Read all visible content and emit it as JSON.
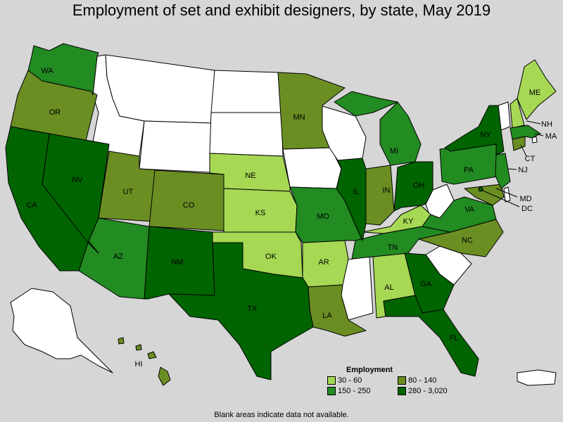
{
  "title": "Employment of set and exhibit designers, by state, May 2019",
  "legend": {
    "title": "Employment",
    "items": [
      {
        "label": "30 - 60",
        "color": "#a6d854"
      },
      {
        "label": "80 - 140",
        "color": "#6b8e23"
      },
      {
        "label": "150 - 250",
        "color": "#228b22"
      },
      {
        "label": "280 - 3,020",
        "color": "#006400"
      }
    ]
  },
  "note": "Blank areas indicate data not available.",
  "states": {
    "WA": {
      "label": "WA",
      "bin": "150 - 250"
    },
    "OR": {
      "label": "OR",
      "bin": "80 - 140"
    },
    "CA": {
      "label": "CA",
      "bin": "280 - 3,020"
    },
    "NV": {
      "label": "NV",
      "bin": "280 - 3,020"
    },
    "UT": {
      "label": "UT",
      "bin": "80 - 140"
    },
    "AZ": {
      "label": "AZ",
      "bin": "150 - 250"
    },
    "CO": {
      "label": "CO",
      "bin": "80 - 140"
    },
    "NM": {
      "label": "NM",
      "bin": "280 - 3,020"
    },
    "TX": {
      "label": "TX",
      "bin": "280 - 3,020"
    },
    "NE": {
      "label": "NE",
      "bin": "30 - 60"
    },
    "KS": {
      "label": "KS",
      "bin": "30 - 60"
    },
    "OK": {
      "label": "OK",
      "bin": "30 - 60"
    },
    "MN": {
      "label": "MN",
      "bin": "80 - 140"
    },
    "MO": {
      "label": "MO",
      "bin": "150 - 250"
    },
    "AR": {
      "label": "AR",
      "bin": "30 - 60"
    },
    "LA": {
      "label": "LA",
      "bin": "80 - 140"
    },
    "IL": {
      "label": "IL",
      "bin": "280 - 3,020"
    },
    "IN": {
      "label": "IN",
      "bin": "80 - 140"
    },
    "MI": {
      "label": "MI",
      "bin": "150 - 250"
    },
    "OH": {
      "label": "OH",
      "bin": "280 - 3,020"
    },
    "KY": {
      "label": "KY",
      "bin": "30 - 60"
    },
    "TN": {
      "label": "TN",
      "bin": "150 - 250"
    },
    "AL": {
      "label": "AL",
      "bin": "30 - 60"
    },
    "GA": {
      "label": "GA",
      "bin": "280 - 3,020"
    },
    "FL": {
      "label": "FL",
      "bin": "280 - 3,020"
    },
    "NC": {
      "label": "NC",
      "bin": "80 - 140"
    },
    "VA": {
      "label": "VA",
      "bin": "150 - 250"
    },
    "PA": {
      "label": "PA",
      "bin": "150 - 250"
    },
    "NY": {
      "label": "NY",
      "bin": "280 - 3,020"
    },
    "NJ": {
      "label": "NJ",
      "bin": "150 - 250"
    },
    "MD": {
      "label": "MD",
      "bin": "80 - 140"
    },
    "DC": {
      "label": "DC",
      "bin": "280 - 3,020"
    },
    "CT": {
      "label": "CT",
      "bin": "80 - 140"
    },
    "MA": {
      "label": "MA",
      "bin": "150 - 250"
    },
    "NH": {
      "label": "NH",
      "bin": "30 - 60"
    },
    "ME": {
      "label": "ME",
      "bin": "30 - 60"
    },
    "HI": {
      "label": "HI",
      "bin": "80 - 140"
    }
  }
}
